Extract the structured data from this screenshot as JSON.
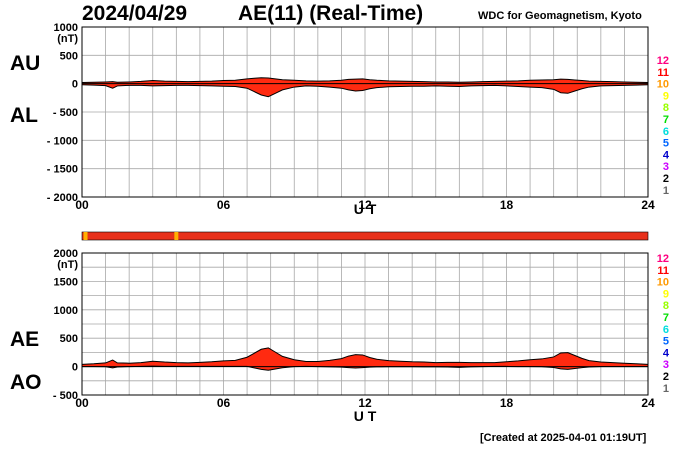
{
  "header": {
    "date": "2024/04/29",
    "title": "AE(11) (Real-Time)",
    "source": "WDC for Geomagnetism, Kyoto"
  },
  "footer": {
    "created": "[Created at 2025-04-01 01:19UT]"
  },
  "colors": {
    "fill": "#ff2a10",
    "grid": "#a8a8a8",
    "status_bar": "#e8301a",
    "status_marker": "#ffb000",
    "station_count_colors": [
      "#ff0080",
      "#ff0000",
      "#ff9900",
      "#ffff00",
      "#99ff00",
      "#00dd00",
      "#00dddd",
      "#0066ff",
      "#0000cc",
      "#cc00ff",
      "#000000",
      "#666666",
      "#cccccc"
    ]
  },
  "station_counts": [
    "12",
    "11",
    "10",
    "9",
    "8",
    "7",
    "6",
    "5",
    "4",
    "3",
    "2",
    "1"
  ],
  "status_bar": {
    "markers_hours": [
      0.15,
      4.0
    ]
  },
  "chart_data": [
    {
      "type": "area",
      "name": "AU/AL",
      "left_labels": [
        "AU",
        "AL"
      ],
      "ylabel": "(nT)",
      "xlabel": "U T",
      "x_ticks": [
        "00",
        "06",
        "12",
        "18",
        "24"
      ],
      "xlim": [
        0,
        24
      ],
      "ylim": [
        -2000,
        1000
      ],
      "y_ticks": [
        "1000",
        "500",
        "0",
        "- 500",
        "- 1000",
        "- 1500",
        "- 2000"
      ],
      "x_hours": [
        0,
        0.5,
        1,
        1.3,
        1.5,
        2,
        2.5,
        3,
        3.5,
        4,
        4.5,
        5,
        5.5,
        6,
        6.5,
        7,
        7.3,
        7.6,
        7.9,
        8.2,
        8.5,
        9,
        9.5,
        10,
        10.5,
        11,
        11.3,
        11.6,
        11.9,
        12.2,
        12.5,
        13,
        13.5,
        14,
        14.5,
        15,
        15.5,
        16,
        16.5,
        17,
        17.5,
        18,
        18.5,
        19,
        19.5,
        20,
        20.3,
        20.6,
        20.9,
        21.2,
        21.5,
        22,
        22.5,
        23,
        23.5,
        24
      ],
      "series": [
        {
          "name": "AU",
          "values": [
            20,
            25,
            30,
            35,
            25,
            30,
            40,
            55,
            45,
            40,
            35,
            40,
            45,
            55,
            60,
            85,
            95,
            105,
            100,
            85,
            70,
            60,
            50,
            45,
            50,
            60,
            75,
            80,
            85,
            70,
            60,
            50,
            45,
            40,
            35,
            30,
            30,
            25,
            30,
            35,
            40,
            45,
            50,
            60,
            65,
            70,
            80,
            75,
            65,
            55,
            45,
            40,
            35,
            30,
            25,
            20
          ]
        },
        {
          "name": "AL",
          "values": [
            -20,
            -25,
            -35,
            -80,
            -40,
            -30,
            -30,
            -40,
            -35,
            -30,
            -30,
            -35,
            -40,
            -45,
            -50,
            -80,
            -140,
            -200,
            -230,
            -170,
            -110,
            -60,
            -40,
            -45,
            -60,
            -80,
            -110,
            -130,
            -120,
            -90,
            -70,
            -55,
            -50,
            -45,
            -45,
            -40,
            -45,
            -50,
            -40,
            -35,
            -30,
            -40,
            -50,
            -60,
            -70,
            -100,
            -160,
            -170,
            -130,
            -90,
            -60,
            -40,
            -35,
            -30,
            -25,
            -20
          ]
        }
      ]
    },
    {
      "type": "area",
      "name": "AE/AO",
      "left_labels": [
        "AE",
        "AO"
      ],
      "ylabel": "(nT)",
      "xlabel": "U T",
      "x_ticks": [
        "00",
        "06",
        "12",
        "18",
        "24"
      ],
      "xlim": [
        0,
        24
      ],
      "ylim": [
        -500,
        2000
      ],
      "y_ticks": [
        "2000",
        "1500",
        "1000",
        "500",
        "0",
        "- 500"
      ],
      "x_hours": [
        0,
        0.5,
        1,
        1.3,
        1.5,
        2,
        2.5,
        3,
        3.5,
        4,
        4.5,
        5,
        5.5,
        6,
        6.5,
        7,
        7.3,
        7.6,
        7.9,
        8.2,
        8.5,
        9,
        9.5,
        10,
        10.5,
        11,
        11.3,
        11.6,
        11.9,
        12.2,
        12.5,
        13,
        13.5,
        14,
        14.5,
        15,
        15.5,
        16,
        16.5,
        17,
        17.5,
        18,
        18.5,
        19,
        19.5,
        20,
        20.3,
        20.6,
        20.9,
        21.2,
        21.5,
        22,
        22.5,
        23,
        23.5,
        24
      ],
      "series": [
        {
          "name": "AE",
          "values": [
            40,
            50,
            65,
            115,
            65,
            60,
            70,
            95,
            80,
            70,
            65,
            75,
            85,
            100,
            110,
            165,
            235,
            305,
            330,
            255,
            180,
            120,
            90,
            90,
            110,
            140,
            185,
            210,
            205,
            160,
            130,
            105,
            95,
            85,
            80,
            70,
            75,
            75,
            70,
            70,
            70,
            85,
            100,
            120,
            135,
            170,
            240,
            245,
            195,
            145,
            105,
            80,
            70,
            60,
            50,
            40
          ]
        },
        {
          "name": "AO",
          "values": [
            0,
            0,
            -3,
            -23,
            -8,
            0,
            5,
            8,
            5,
            5,
            3,
            3,
            3,
            5,
            5,
            3,
            -23,
            -48,
            -65,
            -43,
            -20,
            0,
            5,
            0,
            -5,
            -10,
            -18,
            -25,
            -18,
            -10,
            -5,
            -3,
            -3,
            -3,
            -5,
            -5,
            -8,
            -13,
            -5,
            0,
            5,
            3,
            0,
            0,
            -3,
            -15,
            -40,
            -48,
            -33,
            -18,
            -8,
            0,
            0,
            0,
            0,
            0
          ]
        }
      ]
    }
  ]
}
